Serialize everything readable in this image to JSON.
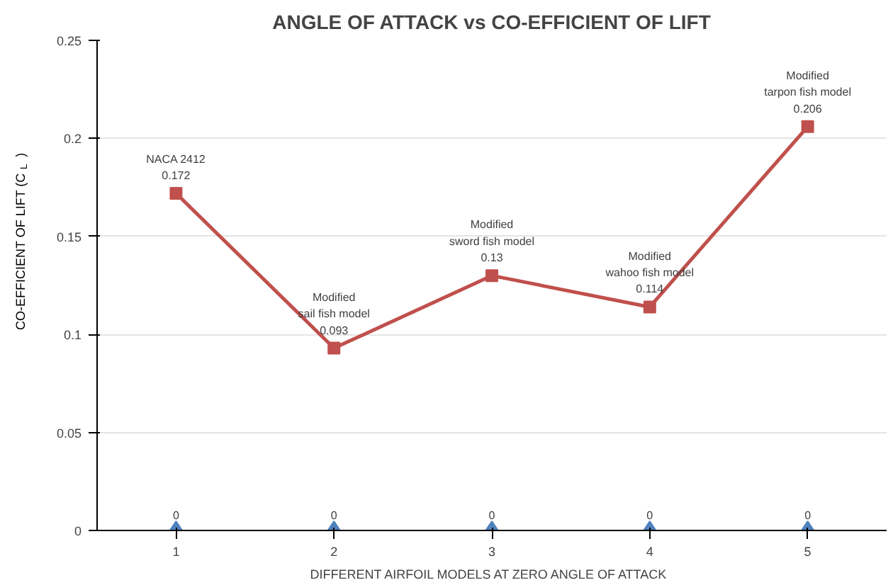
{
  "chart_data": {
    "type": "line",
    "title": "ANGLE OF ATTACK vs CO-EFFICIENT OF LIFT",
    "xlabel": "DIFFERENT  AIRFOIL MODELS AT ZERO ANGLE OF ATTACK",
    "ylabel": "CO-EFFICIENT  OF LIFT (C$_{L}$ )",
    "categories": [
      "1",
      "2",
      "3",
      "4",
      "5"
    ],
    "series": [
      {
        "type": "scatter",
        "marker": "diamond",
        "color": "#4f81bd",
        "values": [
          0,
          0,
          0,
          0,
          0
        ],
        "value_labels": [
          "0",
          "0",
          "0",
          "0",
          "0"
        ]
      },
      {
        "marker": "square",
        "color": "#c0504d",
        "values": [
          0.172,
          0.093,
          0.13,
          0.114,
          0.206
        ],
        "value_labels": [
          "NACA 2412\n0.172",
          "Modified\nsail fish model\n0.093",
          "Modified\nsword fish model\n0.13",
          "Modified\nwahoo fish model\n0.114",
          "Modified\ntarpon fish model\n0.206"
        ]
      }
    ],
    "ylim": [
      0,
      0.25
    ],
    "yticks": [
      0,
      0.05,
      0.1,
      0.15,
      0.2,
      0.25
    ],
    "grid": "y"
  }
}
